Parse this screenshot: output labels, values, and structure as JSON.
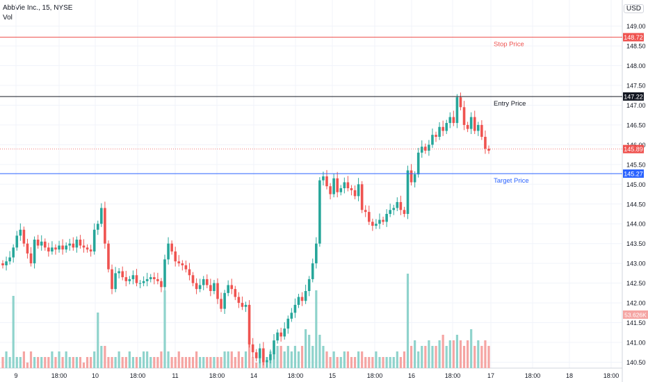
{
  "header": {
    "symbol_line": "AbbVie Inc., 15, NYSE",
    "volume_label": "Vol",
    "currency": "USD"
  },
  "colors": {
    "up": "#26a69a",
    "down": "#ef5350",
    "vol_up": "#8fd3cc",
    "vol_down": "#f5a5a3",
    "stop": "#ef5350",
    "entry": "#131722",
    "target": "#2962ff",
    "last": "#ef5350"
  },
  "chart_data": {
    "type": "candlestick",
    "title": "AbbVie Inc., 15, NYSE",
    "y_ticks": [
      "149.00",
      "148.50",
      "148.00",
      "147.50",
      "147.00",
      "146.50",
      "146.00",
      "145.50",
      "145.00",
      "144.50",
      "144.00",
      "143.50",
      "143.00",
      "142.50",
      "142.00",
      "141.50",
      "141.00",
      "140.50"
    ],
    "x_ticks": [
      "9",
      "18:00",
      "10",
      "18:00",
      "11",
      "18:00",
      "14",
      "18:00",
      "15",
      "18:00",
      "16",
      "18:00",
      "17",
      "18:00",
      "18",
      "18:00"
    ],
    "ylim": [
      140.35,
      149.45
    ],
    "grid": true,
    "levels": [
      {
        "label": "Stop Price",
        "value": 148.72,
        "tag": "148.72",
        "color_key": "stop"
      },
      {
        "label": "Entry Price",
        "value": 147.22,
        "tag": "147.22",
        "color_key": "entry"
      },
      {
        "label": "Target Price",
        "value": 145.27,
        "tag": "145.27",
        "color_key": "target"
      }
    ],
    "last_price": {
      "value": 145.89,
      "tag": "145.89"
    },
    "volume_tag": "53.626K",
    "close_series": [
      142.95,
      143.05,
      143.15,
      143.4,
      143.7,
      143.85,
      143.5,
      143.25,
      143.0,
      143.6,
      143.45,
      143.55,
      143.4,
      143.3,
      143.4,
      143.35,
      143.45,
      143.35,
      143.45,
      143.5,
      143.4,
      143.6,
      143.45,
      143.4,
      143.35,
      143.3,
      143.85,
      144.0,
      144.4,
      143.5,
      142.85,
      142.35,
      142.75,
      142.8,
      142.65,
      142.55,
      142.6,
      142.7,
      142.5,
      142.5,
      142.55,
      142.6,
      142.65,
      142.6,
      142.55,
      142.4,
      143.1,
      143.5,
      143.3,
      143.05,
      143.0,
      142.95,
      142.85,
      142.7,
      142.5,
      142.35,
      142.45,
      142.6,
      142.45,
      142.3,
      142.5,
      142.1,
      141.85,
      142.25,
      142.45,
      142.35,
      142.15,
      142.0,
      141.9,
      141.95,
      140.95,
      140.75,
      140.6,
      140.85,
      140.5,
      140.55,
      140.7,
      141.05,
      141.25,
      141.15,
      141.35,
      141.6,
      141.75,
      141.95,
      142.15,
      142.05,
      142.3,
      142.6,
      143.0,
      143.5,
      145.1,
      145.2,
      144.95,
      144.75,
      145.15,
      144.8,
      144.9,
      145.05,
      144.9,
      144.85,
      144.7,
      145.0,
      144.35,
      144.3,
      144.05,
      143.95,
      144.0,
      144.1,
      144.05,
      144.25,
      144.35,
      144.4,
      144.55,
      144.35,
      144.25,
      145.35,
      145.05,
      145.25,
      145.8,
      145.95,
      145.85,
      146.0,
      146.25,
      146.2,
      146.45,
      146.35,
      146.55,
      146.7,
      146.55,
      147.2,
      146.95,
      146.5,
      146.4,
      146.7,
      146.35,
      146.5,
      146.2,
      145.9,
      145.85
    ],
    "volume_series": [
      2,
      3,
      2,
      13,
      2,
      2,
      3,
      1,
      3,
      2,
      2,
      2,
      2,
      2,
      3,
      2,
      3,
      2,
      3,
      2,
      2,
      2,
      2,
      1,
      2,
      2,
      3,
      10,
      4,
      4,
      2,
      2,
      2,
      3,
      2,
      2,
      3,
      2,
      2,
      2,
      3,
      3,
      2,
      2,
      2,
      3,
      14,
      3,
      2,
      2,
      3,
      2,
      2,
      2,
      2,
      3,
      2,
      2,
      2,
      2,
      2,
      2,
      2,
      3,
      3,
      3,
      2,
      3,
      2,
      3,
      6,
      2,
      1,
      2,
      2,
      2,
      3,
      3,
      4,
      4,
      3,
      4,
      3,
      4,
      3,
      4,
      7,
      6,
      4,
      14,
      6,
      4,
      3,
      2,
      3,
      2,
      2,
      3,
      3,
      2,
      2,
      3,
      3,
      2,
      2,
      2,
      3,
      2,
      2,
      2,
      2,
      2,
      3,
      2,
      3,
      17,
      4,
      5,
      3,
      4,
      4,
      5,
      4,
      4,
      5,
      6,
      4,
      5,
      5,
      6,
      5,
      4,
      5,
      7,
      4,
      5,
      4,
      5,
      4,
      10
    ],
    "series": [
      {
        "name": "AbbVie Inc.",
        "type": "candles"
      },
      {
        "name": "Vol",
        "type": "volume"
      }
    ]
  }
}
